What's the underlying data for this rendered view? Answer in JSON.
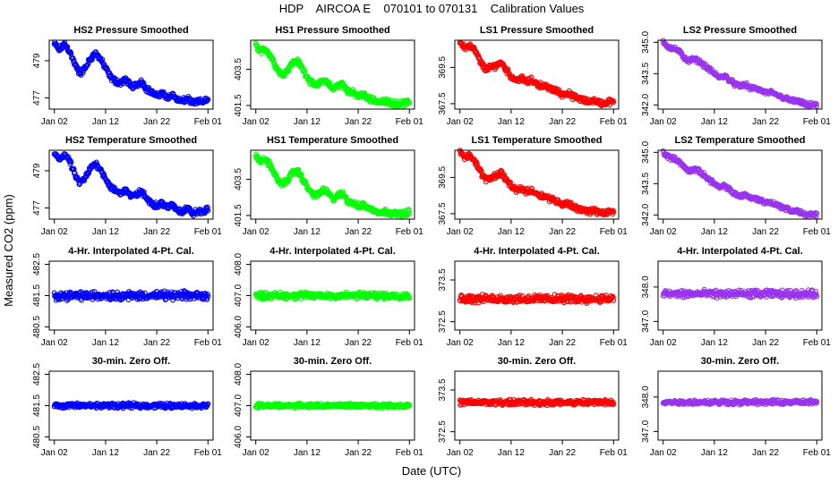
{
  "figure": {
    "title": "HDP    AIRCOA E    070101 to 070131    Calibration Values",
    "xlabel": "Date (UTC)",
    "ylabel": "Measured CO2 (ppm)"
  },
  "chart_data": [
    {
      "type": "scatter",
      "title": "HS2 Pressure Smoothed",
      "color": "#0000ff",
      "ylim": [
        476.4,
        480.1
      ],
      "yticks": [
        "477",
        "479"
      ],
      "ytick_values": [
        477,
        479
      ],
      "xticks": [
        "Jan 02",
        "Jan 12",
        "Jan 22",
        "Feb 01"
      ],
      "xtick_values": [
        1,
        11,
        21,
        31
      ],
      "xlim": [
        0,
        32
      ],
      "series": {
        "name": "HS2",
        "x": [
          1,
          2,
          3,
          4,
          5,
          6,
          7,
          8,
          9,
          10,
          11,
          12,
          13,
          14,
          15,
          16,
          17,
          18,
          19,
          20,
          21,
          22,
          23,
          24,
          25,
          26,
          27,
          28,
          29,
          30,
          31
        ],
        "y": [
          479.9,
          479.6,
          479.9,
          479.5,
          478.8,
          478.3,
          478.6,
          479.1,
          479.4,
          479.1,
          478.6,
          478.1,
          477.9,
          477.8,
          478.0,
          477.6,
          477.7,
          477.9,
          477.5,
          477.3,
          477.1,
          477.3,
          477.0,
          477.2,
          476.9,
          476.8,
          477.0,
          476.7,
          476.8,
          476.8,
          476.9
        ],
        "noise": 0.12
      }
    },
    {
      "type": "scatter",
      "title": "HS1 Pressure Smoothed",
      "color": "#00ff00",
      "ylim": [
        401.3,
        405.1
      ],
      "yticks": [
        "401.5",
        "403.5"
      ],
      "ytick_values": [
        401.5,
        403.5
      ],
      "xticks": [
        "Jan 02",
        "Jan 12",
        "Jan 22",
        "Feb 01"
      ],
      "xtick_values": [
        1,
        11,
        21,
        31
      ],
      "xlim": [
        0,
        32
      ],
      "series": {
        "name": "HS1",
        "x": [
          1,
          2,
          3,
          4,
          5,
          6,
          7,
          8,
          9,
          10,
          11,
          12,
          13,
          14,
          15,
          16,
          17,
          18,
          19,
          20,
          21,
          22,
          23,
          24,
          25,
          26,
          27,
          28,
          29,
          30,
          31
        ],
        "y": [
          404.8,
          404.5,
          404.6,
          404.2,
          403.6,
          403.2,
          403.4,
          403.8,
          404.0,
          403.6,
          403.1,
          402.7,
          402.6,
          402.9,
          402.8,
          402.4,
          402.6,
          402.7,
          402.3,
          402.2,
          402.0,
          402.1,
          401.9,
          401.8,
          401.7,
          401.7,
          401.7,
          401.6,
          401.6,
          401.6,
          401.7
        ],
        "noise": 0.12
      }
    },
    {
      "type": "scatter",
      "title": "LS1 Pressure Smoothed",
      "color": "#ff0000",
      "ylim": [
        367.2,
        371.0
      ],
      "yticks": [
        "367.5",
        "369.5"
      ],
      "ytick_values": [
        367.5,
        369.5
      ],
      "xticks": [
        "Jan 02",
        "Jan 12",
        "Jan 22",
        "Feb 01"
      ],
      "xtick_values": [
        1,
        11,
        21,
        31
      ],
      "xlim": [
        0,
        32
      ],
      "series": {
        "name": "LS1",
        "x": [
          1,
          2,
          3,
          4,
          5,
          6,
          7,
          8,
          9,
          10,
          11,
          12,
          13,
          14,
          15,
          16,
          17,
          18,
          19,
          20,
          21,
          22,
          23,
          24,
          25,
          26,
          27,
          28,
          29,
          30,
          31
        ],
        "y": [
          370.9,
          370.6,
          370.7,
          370.4,
          369.8,
          369.4,
          369.5,
          369.6,
          369.8,
          369.4,
          369.0,
          368.8,
          368.9,
          368.7,
          368.8,
          368.6,
          368.5,
          368.4,
          368.3,
          368.2,
          368.0,
          368.1,
          367.9,
          367.8,
          367.7,
          367.6,
          367.7,
          367.6,
          367.5,
          367.6,
          367.6
        ],
        "noise": 0.12
      }
    },
    {
      "type": "scatter",
      "title": "LS2 Pressure Smoothed",
      "color": "#9933ee",
      "ylim": [
        341.8,
        345.1
      ],
      "yticks": [
        "342.0",
        "343.5",
        "345.0"
      ],
      "ytick_values": [
        342.0,
        343.5,
        345.0
      ],
      "xticks": [
        "Jan 02",
        "Jan 12",
        "Jan 22",
        "Feb 01"
      ],
      "xtick_values": [
        1,
        11,
        21,
        31
      ],
      "xlim": [
        0,
        32
      ],
      "series": {
        "name": "LS2",
        "x": [
          1,
          2,
          3,
          4,
          5,
          6,
          7,
          8,
          9,
          10,
          11,
          12,
          13,
          14,
          15,
          16,
          17,
          18,
          19,
          20,
          21,
          22,
          23,
          24,
          25,
          26,
          27,
          28,
          29,
          30,
          31
        ],
        "y": [
          345.0,
          344.8,
          344.7,
          344.6,
          344.3,
          344.1,
          344.2,
          344.1,
          343.9,
          343.7,
          343.5,
          343.3,
          343.4,
          343.2,
          343.0,
          342.9,
          343.0,
          342.8,
          342.8,
          342.7,
          342.6,
          342.6,
          342.5,
          342.4,
          342.3,
          342.2,
          342.2,
          342.1,
          342.0,
          342.0,
          342.0
        ],
        "noise": 0.08
      }
    },
    {
      "type": "scatter",
      "title": "HS2 Temperature Smoothed",
      "color": "#0000ff",
      "ylim": [
        476.4,
        480.1
      ],
      "yticks": [
        "477",
        "479"
      ],
      "ytick_values": [
        477,
        479
      ],
      "xticks": [
        "Jan 02",
        "Jan 12",
        "Jan 22",
        "Feb 01"
      ],
      "xtick_values": [
        1,
        11,
        21,
        31
      ],
      "xlim": [
        0,
        32
      ],
      "series": {
        "name": "HS2",
        "x": [
          1,
          2,
          3,
          4,
          5,
          6,
          7,
          8,
          9,
          10,
          11,
          12,
          13,
          14,
          15,
          16,
          17,
          18,
          19,
          20,
          21,
          22,
          23,
          24,
          25,
          26,
          27,
          28,
          29,
          30,
          31
        ],
        "y": [
          479.9,
          479.6,
          479.9,
          479.5,
          478.8,
          478.3,
          478.6,
          479.1,
          479.4,
          479.1,
          478.6,
          478.1,
          477.9,
          477.8,
          478.0,
          477.6,
          477.7,
          477.9,
          477.5,
          477.3,
          477.1,
          477.3,
          477.0,
          477.2,
          476.9,
          476.8,
          477.0,
          476.7,
          476.8,
          476.8,
          476.9
        ],
        "noise": 0.12
      }
    },
    {
      "type": "scatter",
      "title": "HS1 Temperature Smoothed",
      "color": "#00ff00",
      "ylim": [
        401.3,
        405.1
      ],
      "yticks": [
        "401.5",
        "403.5"
      ],
      "ytick_values": [
        401.5,
        403.5
      ],
      "xticks": [
        "Jan 02",
        "Jan 12",
        "Jan 22",
        "Feb 01"
      ],
      "xtick_values": [
        1,
        11,
        21,
        31
      ],
      "xlim": [
        0,
        32
      ],
      "series": {
        "name": "HS1",
        "x": [
          1,
          2,
          3,
          4,
          5,
          6,
          7,
          8,
          9,
          10,
          11,
          12,
          13,
          14,
          15,
          16,
          17,
          18,
          19,
          20,
          21,
          22,
          23,
          24,
          25,
          26,
          27,
          28,
          29,
          30,
          31
        ],
        "y": [
          404.8,
          404.5,
          404.6,
          404.2,
          403.6,
          403.2,
          403.4,
          403.8,
          404.0,
          403.6,
          403.1,
          402.7,
          402.6,
          402.9,
          402.8,
          402.4,
          402.6,
          402.7,
          402.3,
          402.2,
          402.0,
          402.1,
          401.9,
          401.8,
          401.7,
          401.7,
          401.7,
          401.6,
          401.6,
          401.6,
          401.7
        ],
        "noise": 0.12
      }
    },
    {
      "type": "scatter",
      "title": "LS1 Temperature Smoothed",
      "color": "#ff0000",
      "ylim": [
        367.2,
        371.0
      ],
      "yticks": [
        "367.5",
        "369.5"
      ],
      "ytick_values": [
        367.5,
        369.5
      ],
      "xticks": [
        "Jan 02",
        "Jan 12",
        "Jan 22",
        "Feb 01"
      ],
      "xtick_values": [
        1,
        11,
        21,
        31
      ],
      "xlim": [
        0,
        32
      ],
      "series": {
        "name": "LS1",
        "x": [
          1,
          2,
          3,
          4,
          5,
          6,
          7,
          8,
          9,
          10,
          11,
          12,
          13,
          14,
          15,
          16,
          17,
          18,
          19,
          20,
          21,
          22,
          23,
          24,
          25,
          26,
          27,
          28,
          29,
          30,
          31
        ],
        "y": [
          370.9,
          370.6,
          370.7,
          370.4,
          369.8,
          369.4,
          369.5,
          369.6,
          369.8,
          369.4,
          369.0,
          368.8,
          368.9,
          368.7,
          368.8,
          368.6,
          368.5,
          368.4,
          368.3,
          368.2,
          368.0,
          368.1,
          367.9,
          367.8,
          367.7,
          367.6,
          367.7,
          367.6,
          367.5,
          367.6,
          367.6
        ],
        "noise": 0.12
      }
    },
    {
      "type": "scatter",
      "title": "LS2 Temperature Smoothed",
      "color": "#9933ee",
      "ylim": [
        341.8,
        345.1
      ],
      "yticks": [
        "342.0",
        "343.5",
        "345.0"
      ],
      "ytick_values": [
        342.0,
        343.5,
        345.0
      ],
      "xticks": [
        "Jan 02",
        "Jan 12",
        "Jan 22",
        "Feb 01"
      ],
      "xtick_values": [
        1,
        11,
        21,
        31
      ],
      "xlim": [
        0,
        32
      ],
      "series": {
        "name": "LS2",
        "x": [
          1,
          2,
          3,
          4,
          5,
          6,
          7,
          8,
          9,
          10,
          11,
          12,
          13,
          14,
          15,
          16,
          17,
          18,
          19,
          20,
          21,
          22,
          23,
          24,
          25,
          26,
          27,
          28,
          29,
          30,
          31
        ],
        "y": [
          345.0,
          344.8,
          344.7,
          344.6,
          344.3,
          344.1,
          344.2,
          344.1,
          343.9,
          343.7,
          343.5,
          343.3,
          343.4,
          343.2,
          343.0,
          342.9,
          343.0,
          342.8,
          342.8,
          342.7,
          342.6,
          342.6,
          342.5,
          342.4,
          342.3,
          342.2,
          342.2,
          342.1,
          342.0,
          342.0,
          342.0
        ],
        "noise": 0.08
      }
    },
    {
      "type": "scatter",
      "title": "4-Hr. Interpolated 4-Pt. Cal.",
      "color": "#0000ff",
      "ylim": [
        480.4,
        482.6
      ],
      "yticks": [
        "480.5",
        "481.5",
        "482.5"
      ],
      "ytick_values": [
        480.5,
        481.5,
        482.5
      ],
      "xticks": [
        "Jan 02",
        "Jan 12",
        "Jan 22",
        "Feb 01"
      ],
      "xtick_values": [
        1,
        11,
        21,
        31
      ],
      "xlim": [
        0,
        32
      ],
      "series": {
        "name": "HS2",
        "x": [
          1,
          31
        ],
        "y": [
          481.5,
          481.5
        ],
        "noise": 0.1
      }
    },
    {
      "type": "scatter",
      "title": "4-Hr. Interpolated 4-Pt. Cal.",
      "color": "#00ff00",
      "ylim": [
        405.9,
        408.1
      ],
      "yticks": [
        "406.0",
        "407.0",
        "408.0"
      ],
      "ytick_values": [
        406.0,
        407.0,
        408.0
      ],
      "xticks": [
        "Jan 02",
        "Jan 12",
        "Jan 22",
        "Feb 01"
      ],
      "xtick_values": [
        1,
        11,
        21,
        31
      ],
      "xlim": [
        0,
        32
      ],
      "series": {
        "name": "HS1",
        "x": [
          1,
          31
        ],
        "y": [
          407.0,
          407.0
        ],
        "noise": 0.08
      }
    },
    {
      "type": "scatter",
      "title": "4-Hr. Interpolated 4-Pt. Cal.",
      "color": "#ff0000",
      "ylim": [
        372.3,
        373.95
      ],
      "yticks": [
        "372.5",
        "373.5"
      ],
      "ytick_values": [
        372.5,
        373.5
      ],
      "xticks": [
        "Jan 02",
        "Jan 12",
        "Jan 22",
        "Feb 01"
      ],
      "xtick_values": [
        1,
        11,
        21,
        31
      ],
      "xlim": [
        0,
        32
      ],
      "series": {
        "name": "LS1",
        "x": [
          1,
          31
        ],
        "y": [
          373.05,
          373.05
        ],
        "noise": 0.07
      }
    },
    {
      "type": "scatter",
      "title": "4-Hr. Interpolated 4-Pt. Cal.",
      "color": "#9933ee",
      "ylim": [
        346.75,
        348.75
      ],
      "yticks": [
        "347.0",
        "348.0"
      ],
      "ytick_values": [
        347.0,
        348.0
      ],
      "xticks": [
        "Jan 02",
        "Jan 12",
        "Jan 22",
        "Feb 01"
      ],
      "xtick_values": [
        1,
        11,
        21,
        31
      ],
      "xlim": [
        0,
        32
      ],
      "series": {
        "name": "LS2",
        "x": [
          1,
          31
        ],
        "y": [
          347.8,
          347.8
        ],
        "noise": 0.08
      }
    },
    {
      "type": "scatter",
      "title": "30-min. Zero Off.",
      "color": "#0000ff",
      "ylim": [
        480.4,
        482.6
      ],
      "yticks": [
        "480.5",
        "481.5",
        "482.5"
      ],
      "ytick_values": [
        480.5,
        481.5,
        482.5
      ],
      "xticks": [
        "Jan 02",
        "Jan 12",
        "Jan 22",
        "Feb 01"
      ],
      "xtick_values": [
        1,
        11,
        21,
        31
      ],
      "xlim": [
        0,
        32
      ],
      "series": {
        "name": "HS2",
        "x": [
          1,
          31
        ],
        "y": [
          481.5,
          481.5
        ],
        "noise": 0.06
      }
    },
    {
      "type": "scatter",
      "title": "30-min. Zero Off.",
      "color": "#00ff00",
      "ylim": [
        405.9,
        408.1
      ],
      "yticks": [
        "406.0",
        "407.0",
        "408.0"
      ],
      "ytick_values": [
        406.0,
        407.0,
        408.0
      ],
      "xticks": [
        "Jan 02",
        "Jan 12",
        "Jan 22",
        "Feb 01"
      ],
      "xtick_values": [
        1,
        11,
        21,
        31
      ],
      "xlim": [
        0,
        32
      ],
      "series": {
        "name": "HS1",
        "x": [
          1,
          31
        ],
        "y": [
          407.0,
          407.0
        ],
        "noise": 0.05
      }
    },
    {
      "type": "scatter",
      "title": "30-min. Zero Off.",
      "color": "#ff0000",
      "ylim": [
        372.3,
        373.95
      ],
      "yticks": [
        "372.5",
        "373.5"
      ],
      "ytick_values": [
        372.5,
        373.5
      ],
      "xticks": [
        "Jan 02",
        "Jan 12",
        "Jan 22",
        "Feb 01"
      ],
      "xtick_values": [
        1,
        11,
        21,
        31
      ],
      "xlim": [
        0,
        32
      ],
      "series": {
        "name": "LS1",
        "x": [
          1,
          31
        ],
        "y": [
          373.2,
          373.2
        ],
        "noise": 0.05
      }
    },
    {
      "type": "scatter",
      "title": "30-min. Zero Off.",
      "color": "#9933ee",
      "ylim": [
        346.75,
        348.75
      ],
      "yticks": [
        "347.0",
        "348.0"
      ],
      "ytick_values": [
        347.0,
        348.0
      ],
      "xticks": [
        "Jan 02",
        "Jan 12",
        "Jan 22",
        "Feb 01"
      ],
      "xtick_values": [
        1,
        11,
        21,
        31
      ],
      "xlim": [
        0,
        32
      ],
      "series": {
        "name": "LS2",
        "x": [
          1,
          31
        ],
        "y": [
          347.85,
          347.85
        ],
        "noise": 0.05
      }
    }
  ]
}
